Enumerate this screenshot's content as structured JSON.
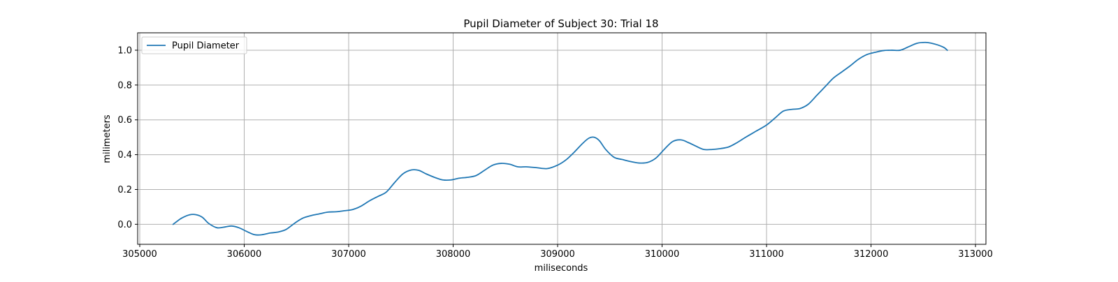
{
  "chart_data": {
    "type": "line",
    "title": "Pupil Diameter of Subject 30: Trial 18",
    "xlabel": "miliseconds",
    "ylabel": "milimeters",
    "xlim": [
      304980,
      313100
    ],
    "ylim": [
      -0.115,
      1.1
    ],
    "xticks": [
      305000,
      306000,
      307000,
      308000,
      309000,
      310000,
      311000,
      312000,
      313000
    ],
    "xtick_labels": [
      "305000",
      "306000",
      "307000",
      "308000",
      "309000",
      "310000",
      "311000",
      "312000",
      "313000"
    ],
    "yticks": [
      0.0,
      0.2,
      0.4,
      0.6,
      0.8,
      1.0
    ],
    "ytick_labels": [
      "0.0",
      "0.2",
      "0.4",
      "0.6",
      "0.8",
      "1.0"
    ],
    "grid": true,
    "legend_position": "upper left",
    "series": [
      {
        "name": "Pupil Diameter",
        "color": "#1f77b4",
        "x": [
          305320,
          305400,
          305480,
          305540,
          305600,
          305660,
          305740,
          305820,
          305880,
          305950,
          306020,
          306100,
          306170,
          306250,
          306320,
          306400,
          306480,
          306560,
          306640,
          306720,
          306800,
          306880,
          306960,
          307040,
          307120,
          307200,
          307280,
          307360,
          307440,
          307520,
          307600,
          307670,
          307740,
          307820,
          307900,
          307980,
          308060,
          308140,
          308220,
          308300,
          308380,
          308460,
          308540,
          308620,
          308700,
          308800,
          308900,
          309000,
          309080,
          309160,
          309240,
          309300,
          309350,
          309400,
          309460,
          309540,
          309620,
          309700,
          309780,
          309860,
          309940,
          310020,
          310100,
          310180,
          310250,
          310320,
          310400,
          310480,
          310560,
          310640,
          310720,
          310800,
          310900,
          311000,
          311080,
          311160,
          311240,
          311320,
          311400,
          311480,
          311560,
          311640,
          311720,
          311800,
          311880,
          311960,
          312040,
          312120,
          312200,
          312280,
          312360,
          312440,
          312520,
          312580,
          312640,
          312700,
          312730
        ],
        "y": [
          0.0,
          0.035,
          0.055,
          0.055,
          0.04,
          0.005,
          -0.02,
          -0.015,
          -0.01,
          -0.02,
          -0.04,
          -0.06,
          -0.06,
          -0.05,
          -0.045,
          -0.03,
          0.005,
          0.035,
          0.05,
          0.06,
          0.07,
          0.072,
          0.078,
          0.085,
          0.105,
          0.135,
          0.16,
          0.185,
          0.24,
          0.29,
          0.312,
          0.31,
          0.29,
          0.27,
          0.255,
          0.255,
          0.265,
          0.27,
          0.28,
          0.31,
          0.34,
          0.35,
          0.345,
          0.33,
          0.33,
          0.325,
          0.32,
          0.34,
          0.37,
          0.415,
          0.465,
          0.495,
          0.5,
          0.48,
          0.43,
          0.385,
          0.372,
          0.36,
          0.352,
          0.355,
          0.38,
          0.43,
          0.475,
          0.485,
          0.47,
          0.45,
          0.43,
          0.43,
          0.435,
          0.445,
          0.47,
          0.5,
          0.535,
          0.57,
          0.61,
          0.65,
          0.66,
          0.665,
          0.69,
          0.74,
          0.79,
          0.84,
          0.875,
          0.91,
          0.948,
          0.975,
          0.988,
          0.998,
          1.0,
          1.0,
          1.02,
          1.04,
          1.045,
          1.04,
          1.03,
          1.015,
          1.0
        ]
      }
    ]
  }
}
